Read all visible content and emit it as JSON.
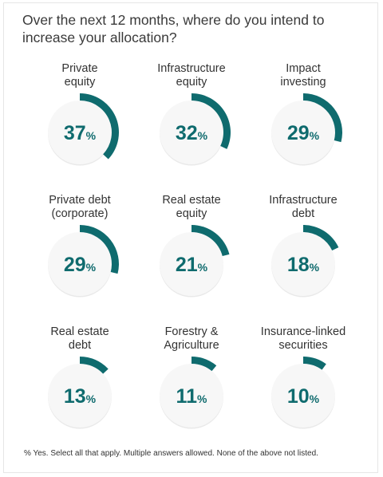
{
  "title": "Over the next 12 months, where do you intend to increase your allocation?",
  "footnote": "% Yes. Select all that apply. Multiple answers allowed. None of the above not listed.",
  "colors": {
    "accent": "#0f6b6e",
    "circle": "#f7f7f7",
    "text": "#333333"
  },
  "chart_data": {
    "type": "pie",
    "title": "Over the next 12 months, where do you intend to increase your allocation?",
    "unit": "%",
    "categories": [
      "Private\nequity",
      "Infrastructure\nequity",
      "Impact\ninvesting",
      "Private debt\n(corporate)",
      "Real estate\nequity",
      "Infrastructure\ndebt",
      "Real estate\ndebt",
      "Forestry &\nAgriculture",
      "Insurance-linked\nsecurities"
    ],
    "values": [
      37,
      32,
      29,
      29,
      21,
      18,
      13,
      11,
      10
    ],
    "value_labels": [
      "37",
      "32",
      "29",
      "29",
      "21",
      "18",
      "13",
      "11",
      "10"
    ],
    "note": "% Yes. Select all that apply. Multiple answers allowed. None of the above not listed."
  }
}
